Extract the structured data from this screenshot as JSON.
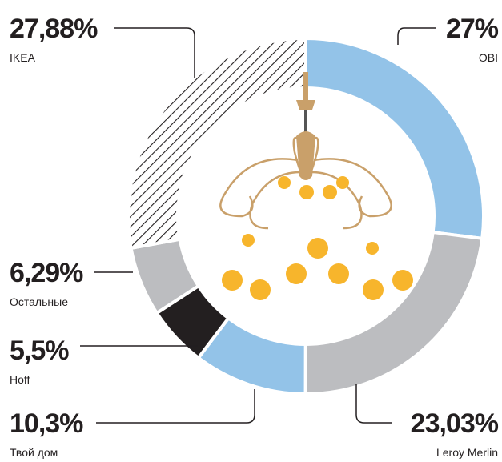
{
  "chart_data": {
    "type": "pie",
    "categories": [
      "OBI",
      "Leroy Merlin",
      "Твой дом",
      "Hoff",
      "Остальные",
      "IKEA"
    ],
    "values": [
      27,
      23.03,
      10.3,
      5.5,
      6.29,
      27.88
    ],
    "value_labels": [
      "27%",
      "23,03%",
      "10,3%",
      "5,5%",
      "6,29%",
      "27,88%"
    ],
    "colors": [
      "#93c3e8",
      "#bcbdc0",
      "#93c3e8",
      "#231f20",
      "#bcbdc0",
      "#ffffff"
    ],
    "hatched": [
      false,
      false,
      false,
      false,
      false,
      true
    ]
  }
}
